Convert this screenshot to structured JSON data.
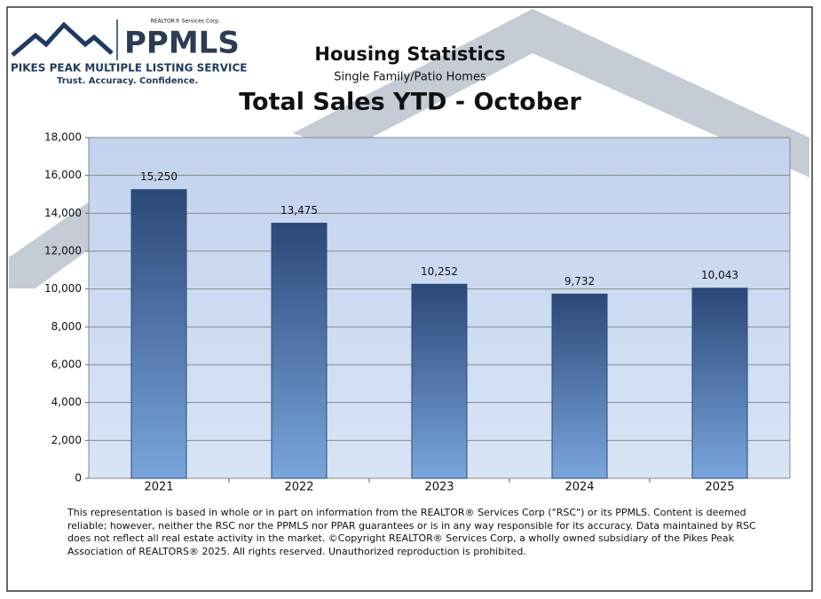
{
  "logo": {
    "brand": "PPMLS",
    "corp": "REALTOR® Services Corp.",
    "name": "PIKES PEAK MULTIPLE LISTING SERVICE",
    "tagline": "Trust. Accuracy. Confidence."
  },
  "chart_data": {
    "type": "bar",
    "title": "Housing Statistics",
    "subtitle": "Single Family/Patio Homes",
    "heading": "Total Sales YTD - October",
    "categories": [
      "2021",
      "2022",
      "2023",
      "2024",
      "2025"
    ],
    "values": [
      15250,
      13475,
      10252,
      9732,
      10043
    ],
    "value_labels": [
      "15,250",
      "13,475",
      "10,252",
      "9,732",
      "10,043"
    ],
    "color": "#3a5f94",
    "ylim": [
      0,
      18000
    ],
    "yticks": [
      0,
      {
        "value": 2000,
        "label": "2,000"
      },
      {
        "value": 4000,
        "label": "4,000"
      },
      {
        "value": 6000,
        "label": "6,000"
      },
      {
        "value": 8000,
        "label": "8,000"
      },
      {
        "value": 10000,
        "label": "10,000"
      },
      {
        "value": 12000,
        "label": "12,000"
      },
      {
        "value": 14000,
        "label": "14,000"
      },
      {
        "value": 16000,
        "label": "16,000"
      },
      {
        "value": 18000,
        "label": "18,000"
      }
    ],
    "grid": true
  },
  "footnote": "This representation is based in whole or in part on information from the REALTOR® Services Corp (\"RSC\") or its PPMLS. Content is deemed reliable; however, neither the RSC nor the PPMLS nor PPAR guarantees or is in any way responsible for its accuracy. Data maintained by RSC does not reflect all real estate activity in the market. ©Copyright REALTOR® Services Corp, a wholly owned subsidiary of the Pikes Peak Association of REALTORS® 2025. All rights reserved. Unauthorized reproduction is prohibited."
}
